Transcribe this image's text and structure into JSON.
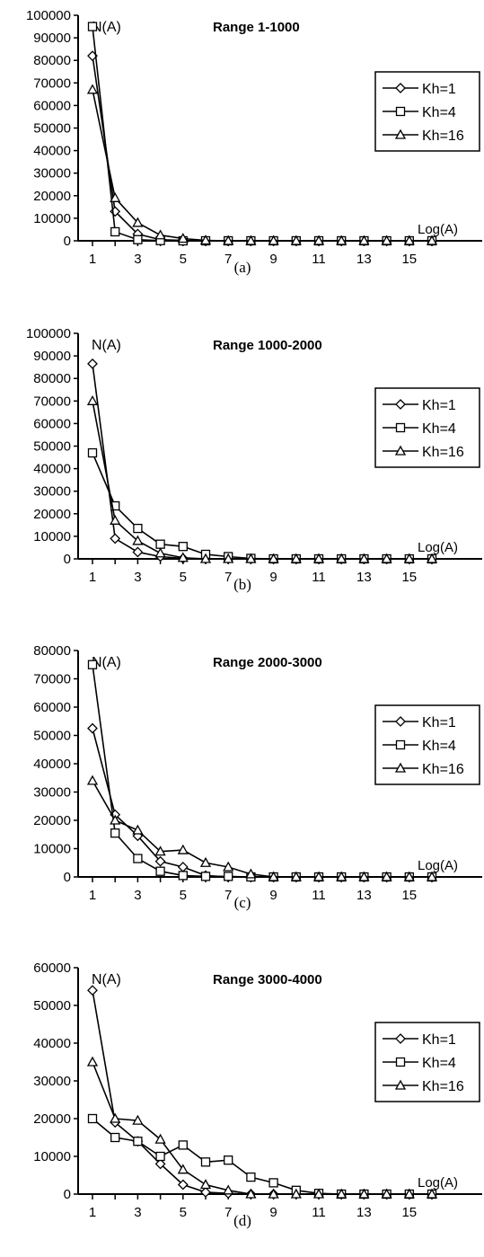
{
  "chart_data": [
    {
      "type": "line",
      "panel_label": "(a)",
      "title": "Range 1-1000",
      "ylabel": "N(A)",
      "xlabel": "Log(A)",
      "ylim": [
        0,
        100000
      ],
      "yticks": [
        "0",
        "10000",
        "20000",
        "30000",
        "40000",
        "50000",
        "60000",
        "70000",
        "80000",
        "90000",
        "100000"
      ],
      "xtick_labels": [
        "1",
        "3",
        "5",
        "7",
        "9",
        "11",
        "13",
        "15"
      ],
      "x": [
        1,
        2,
        3,
        4,
        5,
        6,
        7,
        8,
        9,
        10,
        11,
        12,
        13,
        14,
        15,
        16
      ],
      "series": [
        {
          "name": "Kh=1",
          "marker": "diamond",
          "values": [
            82000,
            13000,
            3000,
            500,
            200,
            0,
            0,
            0,
            0,
            0,
            0,
            0,
            0,
            0,
            0,
            0
          ]
        },
        {
          "name": "Kh=4",
          "marker": "square",
          "values": [
            95000,
            4000,
            500,
            100,
            0,
            0,
            0,
            0,
            0,
            0,
            0,
            0,
            0,
            0,
            0,
            0
          ]
        },
        {
          "name": "Kh=16",
          "marker": "triangle",
          "values": [
            67000,
            19000,
            8000,
            2500,
            1000,
            200,
            0,
            0,
            0,
            0,
            0,
            0,
            0,
            0,
            0,
            0
          ]
        }
      ]
    },
    {
      "type": "line",
      "panel_label": "(b)",
      "title": "Range 1000-2000",
      "ylabel": "N(A)",
      "xlabel": "Log(A)",
      "ylim": [
        0,
        100000
      ],
      "yticks": [
        "0",
        "10000",
        "20000",
        "30000",
        "40000",
        "50000",
        "60000",
        "70000",
        "80000",
        "90000",
        "100000"
      ],
      "xtick_labels": [
        "1",
        "3",
        "5",
        "7",
        "9",
        "11",
        "13",
        "15"
      ],
      "x": [
        1,
        2,
        3,
        4,
        5,
        6,
        7,
        8,
        9,
        10,
        11,
        12,
        13,
        14,
        15,
        16
      ],
      "series": [
        {
          "name": "Kh=1",
          "marker": "diamond",
          "values": [
            86500,
            9000,
            3000,
            1000,
            200,
            0,
            0,
            0,
            0,
            0,
            0,
            0,
            0,
            0,
            0,
            0
          ]
        },
        {
          "name": "Kh=4",
          "marker": "square",
          "values": [
            47000,
            23500,
            13500,
            6500,
            5500,
            2000,
            1000,
            200,
            0,
            0,
            0,
            0,
            0,
            0,
            0,
            0
          ]
        },
        {
          "name": "Kh=16",
          "marker": "triangle",
          "values": [
            70000,
            17000,
            8000,
            2500,
            500,
            0,
            0,
            0,
            0,
            0,
            0,
            0,
            0,
            0,
            0,
            0
          ]
        }
      ]
    },
    {
      "type": "line",
      "panel_label": "(c)",
      "title": "Range 2000-3000",
      "ylabel": "N(A)",
      "xlabel": "Log(A)",
      "ylim": [
        0,
        80000
      ],
      "yticks": [
        "0",
        "10000",
        "20000",
        "30000",
        "40000",
        "50000",
        "60000",
        "70000",
        "80000"
      ],
      "xtick_labels": [
        "1",
        "3",
        "5",
        "7",
        "9",
        "11",
        "13",
        "15"
      ],
      "x": [
        1,
        2,
        3,
        4,
        5,
        6,
        7,
        8,
        9,
        10,
        11,
        12,
        13,
        14,
        15,
        16
      ],
      "series": [
        {
          "name": "Kh=1",
          "marker": "diamond",
          "values": [
            52500,
            22000,
            14500,
            5500,
            3500,
            500,
            0,
            0,
            0,
            0,
            0,
            0,
            0,
            0,
            0,
            0
          ]
        },
        {
          "name": "Kh=4",
          "marker": "square",
          "values": [
            75000,
            15500,
            6500,
            2000,
            500,
            200,
            200,
            0,
            0,
            0,
            0,
            0,
            0,
            0,
            0,
            0
          ]
        },
        {
          "name": "Kh=16",
          "marker": "triangle",
          "values": [
            34000,
            20000,
            16500,
            9000,
            9500,
            5000,
            3500,
            1000,
            0,
            0,
            0,
            0,
            0,
            0,
            0,
            0
          ]
        }
      ]
    },
    {
      "type": "line",
      "panel_label": "(d)",
      "title": "Range 3000-4000",
      "ylabel": "N(A)",
      "xlabel": "Log(A)",
      "ylim": [
        0,
        60000
      ],
      "yticks": [
        "0",
        "10000",
        "20000",
        "30000",
        "40000",
        "50000",
        "60000"
      ],
      "xtick_labels": [
        "1",
        "3",
        "5",
        "7",
        "9",
        "11",
        "13",
        "15"
      ],
      "x": [
        1,
        2,
        3,
        4,
        5,
        6,
        7,
        8,
        9,
        10,
        11,
        12,
        13,
        14,
        15,
        16
      ],
      "series": [
        {
          "name": "Kh=1",
          "marker": "diamond",
          "values": [
            54000,
            19000,
            14000,
            8000,
            2500,
            500,
            200,
            0,
            0,
            0,
            0,
            0,
            0,
            0,
            0,
            0
          ]
        },
        {
          "name": "Kh=4",
          "marker": "square",
          "values": [
            20000,
            15000,
            14000,
            10000,
            13000,
            8500,
            9000,
            4500,
            3000,
            1000,
            200,
            0,
            0,
            0,
            0,
            0
          ]
        },
        {
          "name": "Kh=16",
          "marker": "triangle",
          "values": [
            35000,
            20000,
            19500,
            14500,
            6500,
            2500,
            1000,
            0,
            0,
            0,
            0,
            0,
            0,
            0,
            0,
            0
          ]
        }
      ]
    }
  ]
}
